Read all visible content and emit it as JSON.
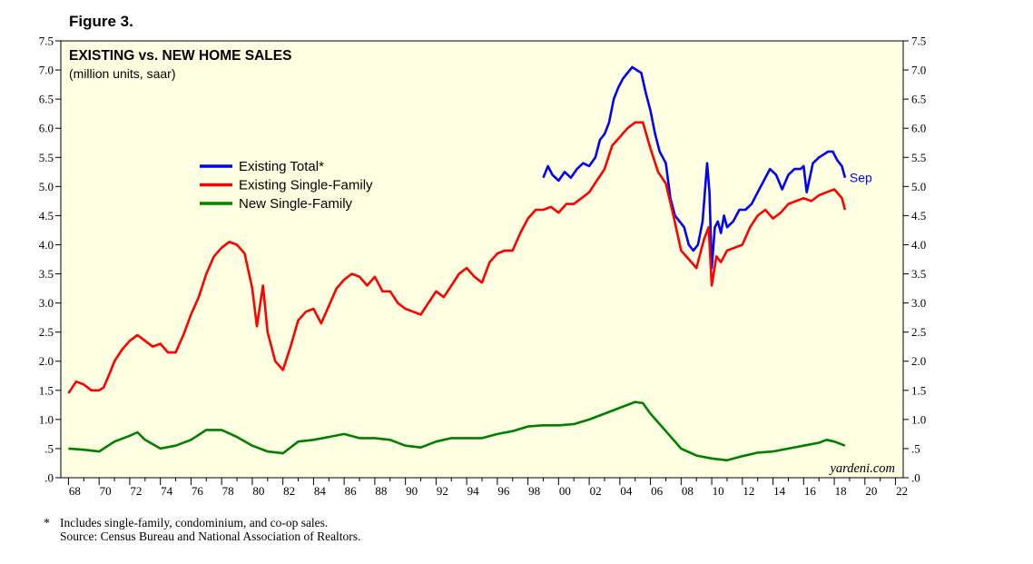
{
  "figure_title": "Figure 3.",
  "footnote": {
    "star": "*",
    "line1": "Includes single-family, condominium, and co-op sales.",
    "line2": "Source: Census Bureau and National Association of Realtors."
  },
  "chart_data": {
    "type": "line",
    "title": "EXISTING vs. NEW HOME SALES",
    "subtitle": "(million units, saar)",
    "watermark": "yardeni.com",
    "end_label": "Sep",
    "xlim": [
      1967.5,
      2022.5
    ],
    "ylim": [
      0,
      7.5
    ],
    "y_ticks": [
      {
        "value": 0,
        "label": ".0"
      },
      {
        "value": 0.5,
        "label": ".5"
      },
      {
        "value": 1,
        "label": "1.0"
      },
      {
        "value": 1.5,
        "label": "1.5"
      },
      {
        "value": 2,
        "label": "2.0"
      },
      {
        "value": 2.5,
        "label": "2.5"
      },
      {
        "value": 3,
        "label": "3.0"
      },
      {
        "value": 3.5,
        "label": "3.5"
      },
      {
        "value": 4,
        "label": "4.0"
      },
      {
        "value": 4.5,
        "label": "4.5"
      },
      {
        "value": 5,
        "label": "5.0"
      },
      {
        "value": 5.5,
        "label": "5.5"
      },
      {
        "value": 6,
        "label": "6.0"
      },
      {
        "value": 6.5,
        "label": "6.5"
      },
      {
        "value": 7,
        "label": "7.0"
      },
      {
        "value": 7.5,
        "label": "7.5"
      }
    ],
    "x_ticks": [
      {
        "value": 1968,
        "label": "68"
      },
      {
        "value": 1970,
        "label": "70"
      },
      {
        "value": 1972,
        "label": "72"
      },
      {
        "value": 1974,
        "label": "74"
      },
      {
        "value": 1976,
        "label": "76"
      },
      {
        "value": 1978,
        "label": "78"
      },
      {
        "value": 1980,
        "label": "80"
      },
      {
        "value": 1982,
        "label": "82"
      },
      {
        "value": 1984,
        "label": "84"
      },
      {
        "value": 1986,
        "label": "86"
      },
      {
        "value": 1988,
        "label": "88"
      },
      {
        "value": 1990,
        "label": "90"
      },
      {
        "value": 1992,
        "label": "92"
      },
      {
        "value": 1994,
        "label": "94"
      },
      {
        "value": 1996,
        "label": "96"
      },
      {
        "value": 1998,
        "label": "98"
      },
      {
        "value": 2000,
        "label": "00"
      },
      {
        "value": 2002,
        "label": "02"
      },
      {
        "value": 2004,
        "label": "04"
      },
      {
        "value": 2006,
        "label": "06"
      },
      {
        "value": 2008,
        "label": "08"
      },
      {
        "value": 2010,
        "label": "10"
      },
      {
        "value": 2012,
        "label": "12"
      },
      {
        "value": 2014,
        "label": "14"
      },
      {
        "value": 2016,
        "label": "16"
      },
      {
        "value": 2018,
        "label": "18"
      },
      {
        "value": 2020,
        "label": "20"
      },
      {
        "value": 2022,
        "label": "22"
      }
    ],
    "legend_position": "upper-left",
    "series": [
      {
        "name": "Existing Total*",
        "color": "#0000ff",
        "x": [
          1999.0,
          1999.3,
          1999.6,
          2000.0,
          2000.4,
          2000.8,
          2001.2,
          2001.6,
          2002.0,
          2002.4,
          2002.7,
          2003.0,
          2003.3,
          2003.6,
          2003.9,
          2004.2,
          2004.5,
          2004.8,
          2005.1,
          2005.4,
          2005.7,
          2006.0,
          2006.3,
          2006.6,
          2007.0,
          2007.3,
          2007.6,
          2007.9,
          2008.2,
          2008.5,
          2008.8,
          2009.1,
          2009.4,
          2009.7,
          2009.85,
          2010.0,
          2010.2,
          2010.4,
          2010.6,
          2010.8,
          2011.0,
          2011.4,
          2011.8,
          2012.2,
          2012.6,
          2013.0,
          2013.4,
          2013.8,
          2014.2,
          2014.6,
          2015.0,
          2015.4,
          2015.8,
          2016.0,
          2016.2,
          2016.6,
          2017.0,
          2017.3,
          2017.6,
          2017.9,
          2018.2,
          2018.5,
          2018.7
        ],
        "values": [
          5.15,
          5.35,
          5.2,
          5.1,
          5.25,
          5.15,
          5.3,
          5.4,
          5.35,
          5.5,
          5.8,
          5.9,
          6.1,
          6.5,
          6.7,
          6.85,
          6.95,
          7.05,
          7.0,
          6.95,
          6.6,
          6.3,
          5.9,
          5.6,
          5.4,
          4.8,
          4.5,
          4.4,
          4.3,
          4.0,
          3.9,
          4.0,
          4.4,
          5.4,
          4.9,
          3.6,
          4.3,
          4.4,
          4.2,
          4.5,
          4.3,
          4.4,
          4.6,
          4.6,
          4.7,
          4.9,
          5.1,
          5.3,
          5.2,
          4.95,
          5.2,
          5.3,
          5.3,
          5.35,
          4.9,
          5.4,
          5.5,
          5.55,
          5.6,
          5.6,
          5.45,
          5.35,
          5.15
        ]
      },
      {
        "name": "Existing Single-Family",
        "color": "#ff0000",
        "x": [
          1968.0,
          1968.5,
          1969.0,
          1969.5,
          1970.0,
          1970.3,
          1970.7,
          1971.0,
          1971.5,
          1972.0,
          1972.5,
          1973.0,
          1973.5,
          1974.0,
          1974.5,
          1975.0,
          1975.5,
          1976.0,
          1976.5,
          1977.0,
          1977.5,
          1978.0,
          1978.5,
          1979.0,
          1979.5,
          1980.0,
          1980.3,
          1980.7,
          1981.0,
          1981.5,
          1982.0,
          1982.5,
          1983.0,
          1983.5,
          1984.0,
          1984.5,
          1985.0,
          1985.5,
          1986.0,
          1986.5,
          1987.0,
          1987.5,
          1988.0,
          1988.5,
          1989.0,
          1989.5,
          1990.0,
          1990.5,
          1991.0,
          1991.5,
          1992.0,
          1992.5,
          1993.0,
          1993.5,
          1994.0,
          1994.5,
          1995.0,
          1995.5,
          1996.0,
          1996.5,
          1997.0,
          1997.5,
          1998.0,
          1998.5,
          1999.0,
          1999.5,
          2000.0,
          2000.5,
          2001.0,
          2001.5,
          2002.0,
          2002.5,
          2003.0,
          2003.5,
          2004.0,
          2004.5,
          2005.0,
          2005.5,
          2006.0,
          2006.5,
          2007.0,
          2007.5,
          2008.0,
          2008.5,
          2009.0,
          2009.5,
          2009.8,
          2010.0,
          2010.3,
          2010.6,
          2011.0,
          2011.5,
          2012.0,
          2012.5,
          2013.0,
          2013.5,
          2014.0,
          2014.5,
          2015.0,
          2015.5,
          2016.0,
          2016.5,
          2017.0,
          2017.5,
          2018.0,
          2018.5,
          2018.7
        ],
        "values": [
          1.45,
          1.65,
          1.6,
          1.5,
          1.5,
          1.55,
          1.8,
          2.0,
          2.2,
          2.35,
          2.45,
          2.35,
          2.25,
          2.3,
          2.15,
          2.15,
          2.45,
          2.8,
          3.1,
          3.5,
          3.8,
          3.95,
          4.05,
          4.0,
          3.85,
          3.25,
          2.6,
          3.3,
          2.5,
          2.0,
          1.85,
          2.25,
          2.7,
          2.85,
          2.9,
          2.65,
          2.95,
          3.25,
          3.4,
          3.5,
          3.45,
          3.3,
          3.45,
          3.2,
          3.2,
          3.0,
          2.9,
          2.85,
          2.8,
          3.0,
          3.2,
          3.1,
          3.3,
          3.5,
          3.6,
          3.45,
          3.35,
          3.7,
          3.85,
          3.9,
          3.9,
          4.2,
          4.45,
          4.6,
          4.6,
          4.65,
          4.55,
          4.7,
          4.7,
          4.8,
          4.9,
          5.1,
          5.3,
          5.7,
          5.85,
          6.0,
          6.1,
          6.1,
          5.65,
          5.25,
          5.05,
          4.5,
          3.9,
          3.75,
          3.6,
          4.1,
          4.3,
          3.3,
          3.8,
          3.7,
          3.9,
          3.95,
          4.0,
          4.3,
          4.5,
          4.6,
          4.45,
          4.55,
          4.7,
          4.75,
          4.8,
          4.75,
          4.85,
          4.9,
          4.95,
          4.8,
          4.6
        ]
      },
      {
        "name": "New Single-Family",
        "color": "#008000",
        "x": [
          1968.0,
          1969.0,
          1970.0,
          1971.0,
          1972.0,
          1972.5,
          1973.0,
          1974.0,
          1975.0,
          1976.0,
          1977.0,
          1978.0,
          1979.0,
          1980.0,
          1981.0,
          1982.0,
          1983.0,
          1984.0,
          1985.0,
          1986.0,
          1987.0,
          1988.0,
          1989.0,
          1990.0,
          1991.0,
          1992.0,
          1993.0,
          1994.0,
          1995.0,
          1996.0,
          1997.0,
          1998.0,
          1999.0,
          2000.0,
          2001.0,
          2002.0,
          2003.0,
          2004.0,
          2005.0,
          2005.5,
          2006.0,
          2007.0,
          2008.0,
          2009.0,
          2010.0,
          2011.0,
          2012.0,
          2013.0,
          2014.0,
          2015.0,
          2016.0,
          2017.0,
          2017.5,
          2018.0,
          2018.7
        ],
        "values": [
          0.5,
          0.48,
          0.45,
          0.62,
          0.72,
          0.78,
          0.65,
          0.5,
          0.55,
          0.65,
          0.82,
          0.82,
          0.7,
          0.55,
          0.45,
          0.42,
          0.62,
          0.65,
          0.7,
          0.75,
          0.68,
          0.68,
          0.65,
          0.55,
          0.52,
          0.62,
          0.68,
          0.68,
          0.68,
          0.75,
          0.8,
          0.88,
          0.9,
          0.9,
          0.92,
          1.0,
          1.1,
          1.2,
          1.3,
          1.28,
          1.1,
          0.8,
          0.5,
          0.38,
          0.33,
          0.3,
          0.37,
          0.43,
          0.45,
          0.5,
          0.55,
          0.6,
          0.65,
          0.62,
          0.55
        ]
      }
    ]
  }
}
